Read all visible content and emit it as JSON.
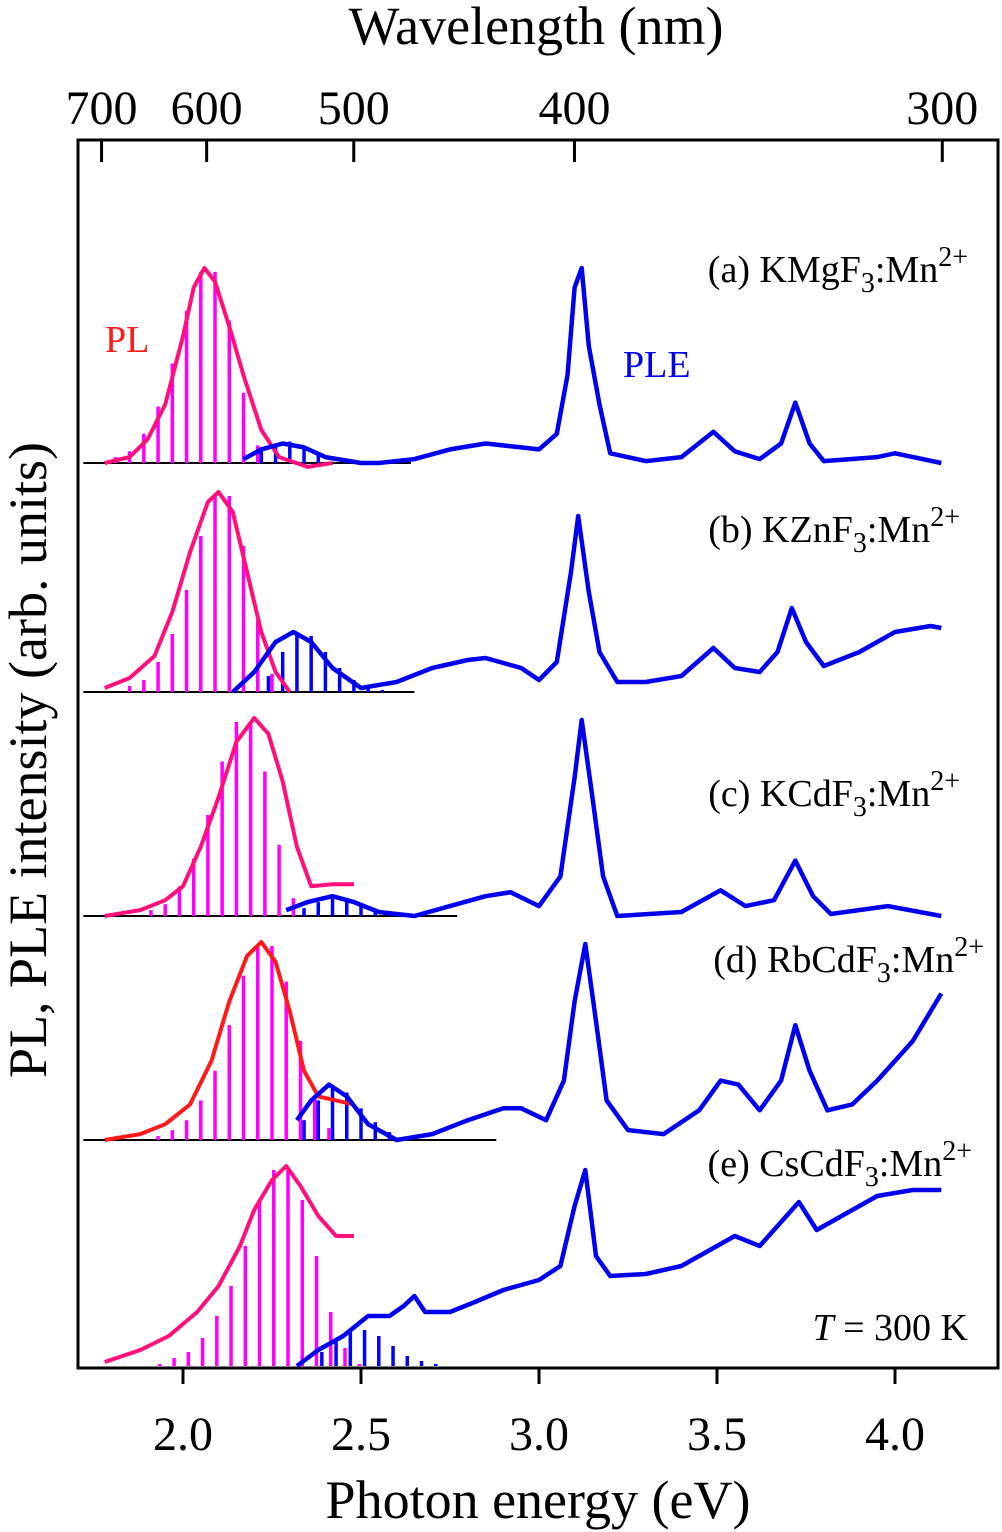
{
  "chart_data": {
    "type": "line",
    "xlabel": "Photon energy (eV)",
    "ylabel": "PL, PLE intensity (arb. units)",
    "x2label": "Wavelength (nm)",
    "xlim": [
      1.72,
      4.22
    ],
    "xticks": [
      "2.0",
      "2.5",
      "3.0",
      "3.5",
      "4.0"
    ],
    "x2ticks": [
      "700",
      "600",
      "500",
      "400",
      "300"
    ],
    "grid": false,
    "colors": {
      "PL": "#ff0f7b",
      "PL_d": "#ff1a1a",
      "PLE": "#0000ee",
      "PL_bars": "#ff00ff",
      "PLE_bars": "#0000ff"
    },
    "annotations": {
      "pl": "PL",
      "ple": "PLE",
      "temp_italic": "T",
      "temp_rest": " = 300 K"
    },
    "panels": [
      {
        "label": {
          "prefix": "(a) KMgF",
          "sub": "3",
          "mid": ":Mn",
          "sup": "2+"
        },
        "PL": [
          [
            1.78,
            0
          ],
          [
            1.85,
            0.03
          ],
          [
            1.9,
            0.12
          ],
          [
            1.95,
            0.3
          ],
          [
            2.0,
            0.65
          ],
          [
            2.03,
            0.9
          ],
          [
            2.06,
            1.0
          ],
          [
            2.09,
            0.93
          ],
          [
            2.13,
            0.7
          ],
          [
            2.17,
            0.45
          ],
          [
            2.22,
            0.17
          ],
          [
            2.27,
            0.03
          ],
          [
            2.35,
            -0.02
          ],
          [
            2.42,
            0
          ]
        ],
        "PLE": [
          [
            2.17,
            0.02
          ],
          [
            2.22,
            0.07
          ],
          [
            2.28,
            0.1
          ],
          [
            2.34,
            0.08
          ],
          [
            2.4,
            0.03
          ],
          [
            2.5,
            0.0
          ],
          [
            2.55,
            0.0
          ],
          [
            2.65,
            0.02
          ],
          [
            2.75,
            0.07
          ],
          [
            2.85,
            0.1
          ],
          [
            2.95,
            0.08
          ],
          [
            3.0,
            0.07
          ],
          [
            3.05,
            0.15
          ],
          [
            3.08,
            0.45
          ],
          [
            3.1,
            0.9
          ],
          [
            3.12,
            1.0
          ],
          [
            3.14,
            0.6
          ],
          [
            3.17,
            0.3
          ],
          [
            3.2,
            0.05
          ],
          [
            3.3,
            0.01
          ],
          [
            3.4,
            0.03
          ],
          [
            3.49,
            0.16
          ],
          [
            3.55,
            0.06
          ],
          [
            3.62,
            0.02
          ],
          [
            3.68,
            0.1
          ],
          [
            3.72,
            0.31
          ],
          [
            3.76,
            0.1
          ],
          [
            3.8,
            0.01
          ],
          [
            3.95,
            0.03
          ],
          [
            4.0,
            0.05
          ],
          [
            4.13,
            0.0
          ]
        ],
        "PL_bars": {
          "x": [
            1.81,
            1.85,
            1.89,
            1.93,
            1.97,
            2.01,
            2.05,
            2.09,
            2.13,
            2.17,
            2.21
          ],
          "h": [
            0.03,
            0.06,
            0.15,
            0.29,
            0.51,
            0.78,
            0.98,
            0.98,
            0.73,
            0.36,
            0.09
          ]
        },
        "PLE_bars": {
          "x": [
            2.22,
            2.26,
            2.3,
            2.34,
            2.38
          ],
          "h": [
            0.08,
            0.1,
            0.11,
            0.08,
            0.05
          ]
        },
        "baseline_range": [
          1.72,
          2.64
        ]
      },
      {
        "label": {
          "prefix": "(b) KZnF",
          "sub": "3",
          "mid": ":Mn",
          "sup": "2+"
        },
        "PL": [
          [
            1.78,
            0.02
          ],
          [
            1.85,
            0.07
          ],
          [
            1.92,
            0.18
          ],
          [
            1.97,
            0.4
          ],
          [
            2.02,
            0.7
          ],
          [
            2.07,
            0.95
          ],
          [
            2.1,
            1.0
          ],
          [
            2.14,
            0.9
          ],
          [
            2.18,
            0.6
          ],
          [
            2.22,
            0.3
          ],
          [
            2.26,
            0.1
          ],
          [
            2.3,
            0.0
          ]
        ],
        "PLE": [
          [
            2.14,
            0.0
          ],
          [
            2.2,
            0.1
          ],
          [
            2.26,
            0.25
          ],
          [
            2.31,
            0.3
          ],
          [
            2.36,
            0.25
          ],
          [
            2.42,
            0.12
          ],
          [
            2.5,
            0.02
          ],
          [
            2.6,
            0.05
          ],
          [
            2.7,
            0.12
          ],
          [
            2.8,
            0.16
          ],
          [
            2.85,
            0.17
          ],
          [
            2.95,
            0.12
          ],
          [
            3.0,
            0.06
          ],
          [
            3.05,
            0.15
          ],
          [
            3.09,
            0.6
          ],
          [
            3.11,
            0.88
          ],
          [
            3.14,
            0.5
          ],
          [
            3.17,
            0.2
          ],
          [
            3.22,
            0.05
          ],
          [
            3.3,
            0.05
          ],
          [
            3.4,
            0.08
          ],
          [
            3.49,
            0.22
          ],
          [
            3.55,
            0.12
          ],
          [
            3.62,
            0.1
          ],
          [
            3.67,
            0.2
          ],
          [
            3.71,
            0.42
          ],
          [
            3.75,
            0.25
          ],
          [
            3.8,
            0.13
          ],
          [
            3.9,
            0.2
          ],
          [
            4.0,
            0.3
          ],
          [
            4.1,
            0.33
          ],
          [
            4.13,
            0.32
          ]
        ],
        "PL_bars": {
          "x": [
            1.85,
            1.89,
            1.93,
            1.97,
            2.01,
            2.05,
            2.09,
            2.13,
            2.17,
            2.21,
            2.25
          ],
          "h": [
            0.03,
            0.06,
            0.15,
            0.29,
            0.51,
            0.78,
            0.98,
            0.98,
            0.73,
            0.36,
            0.09
          ]
        },
        "PLE_bars": {
          "x": [
            2.24,
            2.28,
            2.32,
            2.36,
            2.4,
            2.44,
            2.48,
            2.52,
            2.56
          ],
          "h": [
            0.08,
            0.2,
            0.3,
            0.28,
            0.2,
            0.12,
            0.06,
            0.03,
            0.01
          ]
        },
        "baseline_range": [
          1.72,
          2.65
        ]
      },
      {
        "label": {
          "prefix": "(c) KCdF",
          "sub": "3",
          "mid": ":Mn",
          "sup": "2+"
        },
        "PL": [
          [
            1.78,
            0
          ],
          [
            1.88,
            0.03
          ],
          [
            1.95,
            0.08
          ],
          [
            2.0,
            0.15
          ],
          [
            2.05,
            0.35
          ],
          [
            2.1,
            0.6
          ],
          [
            2.15,
            0.88
          ],
          [
            2.2,
            1.0
          ],
          [
            2.24,
            0.92
          ],
          [
            2.28,
            0.68
          ],
          [
            2.32,
            0.35
          ],
          [
            2.36,
            0.15
          ],
          [
            2.42,
            0.16
          ],
          [
            2.48,
            0.16
          ]
        ],
        "PLE": [
          [
            2.29,
            0.03
          ],
          [
            2.35,
            0.07
          ],
          [
            2.42,
            0.1
          ],
          [
            2.48,
            0.07
          ],
          [
            2.55,
            0.02
          ],
          [
            2.65,
            0.0
          ],
          [
            2.75,
            0.05
          ],
          [
            2.85,
            0.1
          ],
          [
            2.92,
            0.12
          ],
          [
            3.0,
            0.05
          ],
          [
            3.06,
            0.2
          ],
          [
            3.1,
            0.7
          ],
          [
            3.12,
            0.99
          ],
          [
            3.15,
            0.6
          ],
          [
            3.18,
            0.2
          ],
          [
            3.22,
            0.0
          ],
          [
            3.4,
            0.02
          ],
          [
            3.51,
            0.13
          ],
          [
            3.58,
            0.05
          ],
          [
            3.66,
            0.08
          ],
          [
            3.72,
            0.28
          ],
          [
            3.77,
            0.1
          ],
          [
            3.82,
            0.01
          ],
          [
            3.98,
            0.05
          ],
          [
            4.13,
            0.0
          ]
        ],
        "PL_bars": {
          "x": [
            1.91,
            1.95,
            1.99,
            2.03,
            2.07,
            2.11,
            2.15,
            2.19,
            2.23,
            2.27,
            2.31
          ],
          "h": [
            0.03,
            0.06,
            0.15,
            0.29,
            0.51,
            0.78,
            0.98,
            0.98,
            0.73,
            0.36,
            0.09
          ]
        },
        "PLE_bars": {
          "x": [
            2.34,
            2.38,
            2.42,
            2.46,
            2.5,
            2.54,
            2.58
          ],
          "h": [
            0.04,
            0.07,
            0.09,
            0.08,
            0.05,
            0.03,
            0.01
          ]
        },
        "baseline_range": [
          1.72,
          2.77
        ]
      },
      {
        "label": {
          "prefix": "(d) RbCdF",
          "sub": "3",
          "mid": ":Mn",
          "sup": "2+"
        },
        "PL": [
          [
            1.78,
            0
          ],
          [
            1.88,
            0.03
          ],
          [
            1.95,
            0.08
          ],
          [
            2.02,
            0.18
          ],
          [
            2.08,
            0.4
          ],
          [
            2.13,
            0.7
          ],
          [
            2.18,
            0.93
          ],
          [
            2.22,
            1.0
          ],
          [
            2.26,
            0.9
          ],
          [
            2.3,
            0.65
          ],
          [
            2.34,
            0.35
          ],
          [
            2.38,
            0.22
          ],
          [
            2.43,
            0.2
          ],
          [
            2.48,
            0.18
          ]
        ],
        "PLE": [
          [
            2.32,
            0.1
          ],
          [
            2.36,
            0.2
          ],
          [
            2.41,
            0.28
          ],
          [
            2.46,
            0.22
          ],
          [
            2.52,
            0.08
          ],
          [
            2.6,
            0.0
          ],
          [
            2.7,
            0.03
          ],
          [
            2.8,
            0.1
          ],
          [
            2.9,
            0.16
          ],
          [
            2.95,
            0.16
          ],
          [
            3.02,
            0.1
          ],
          [
            3.07,
            0.3
          ],
          [
            3.1,
            0.7
          ],
          [
            3.13,
            0.99
          ],
          [
            3.16,
            0.6
          ],
          [
            3.19,
            0.2
          ],
          [
            3.25,
            0.05
          ],
          [
            3.35,
            0.03
          ],
          [
            3.45,
            0.15
          ],
          [
            3.51,
            0.3
          ],
          [
            3.56,
            0.28
          ],
          [
            3.62,
            0.15
          ],
          [
            3.68,
            0.3
          ],
          [
            3.72,
            0.58
          ],
          [
            3.76,
            0.35
          ],
          [
            3.81,
            0.15
          ],
          [
            3.88,
            0.18
          ],
          [
            3.95,
            0.3
          ],
          [
            4.05,
            0.5
          ],
          [
            4.13,
            0.74
          ]
        ],
        "PL_bars": {
          "x": [
            1.93,
            1.97,
            2.01,
            2.05,
            2.09,
            2.13,
            2.17,
            2.21,
            2.25,
            2.29,
            2.33,
            2.37,
            2.41
          ],
          "h": [
            0.02,
            0.05,
            0.1,
            0.2,
            0.35,
            0.58,
            0.83,
            0.98,
            0.98,
            0.8,
            0.5,
            0.22,
            0.06
          ]
        },
        "PLE_bars": {
          "x": [
            2.34,
            2.38,
            2.42,
            2.46,
            2.5,
            2.54,
            2.58,
            2.62
          ],
          "h": [
            0.1,
            0.2,
            0.26,
            0.24,
            0.16,
            0.09,
            0.04,
            0.01
          ]
        },
        "baseline_range": [
          1.72,
          2.88
        ]
      },
      {
        "label": {
          "prefix": "(e) CsCdF",
          "sub": "3",
          "mid": ":Mn",
          "sup": "2+"
        },
        "PL": [
          [
            1.78,
            0.02
          ],
          [
            1.88,
            0.08
          ],
          [
            1.96,
            0.15
          ],
          [
            2.04,
            0.27
          ],
          [
            2.1,
            0.4
          ],
          [
            2.16,
            0.6
          ],
          [
            2.2,
            0.78
          ],
          [
            2.25,
            0.93
          ],
          [
            2.29,
            1.0
          ],
          [
            2.33,
            0.9
          ],
          [
            2.38,
            0.75
          ],
          [
            2.43,
            0.65
          ],
          [
            2.48,
            0.65
          ]
        ],
        "PLE": [
          [
            2.32,
            0.0
          ],
          [
            2.38,
            0.08
          ],
          [
            2.45,
            0.15
          ],
          [
            2.52,
            0.25
          ],
          [
            2.58,
            0.25
          ],
          [
            2.62,
            0.3
          ],
          [
            2.65,
            0.35
          ],
          [
            2.68,
            0.27
          ],
          [
            2.75,
            0.27
          ],
          [
            2.82,
            0.32
          ],
          [
            2.9,
            0.38
          ],
          [
            3.0,
            0.43
          ],
          [
            3.06,
            0.5
          ],
          [
            3.1,
            0.8
          ],
          [
            3.13,
            0.98
          ],
          [
            3.16,
            0.55
          ],
          [
            3.2,
            0.45
          ],
          [
            3.3,
            0.46
          ],
          [
            3.4,
            0.5
          ],
          [
            3.5,
            0.6
          ],
          [
            3.55,
            0.65
          ],
          [
            3.62,
            0.6
          ],
          [
            3.7,
            0.76
          ],
          [
            3.73,
            0.82
          ],
          [
            3.78,
            0.68
          ],
          [
            3.85,
            0.75
          ],
          [
            3.95,
            0.85
          ],
          [
            4.05,
            0.88
          ],
          [
            4.13,
            0.88
          ]
        ],
        "PL_bars": {
          "x": [
            1.935,
            1.975,
            2.015,
            2.055,
            2.095,
            2.135,
            2.175,
            2.215,
            2.255,
            2.295,
            2.335,
            2.375,
            2.415,
            2.455,
            2.495
          ],
          "h": [
            0.01,
            0.04,
            0.07,
            0.14,
            0.25,
            0.4,
            0.6,
            0.83,
            0.98,
            0.98,
            0.83,
            0.55,
            0.27,
            0.09,
            0.01
          ]
        },
        "PLE_bars": {
          "x": [
            2.39,
            2.43,
            2.47,
            2.51,
            2.55,
            2.59,
            2.63,
            2.67,
            2.71
          ],
          "h": [
            0.07,
            0.13,
            0.18,
            0.18,
            0.15,
            0.1,
            0.05,
            0.025,
            0.01
          ]
        },
        "baseline_range": null
      }
    ]
  }
}
